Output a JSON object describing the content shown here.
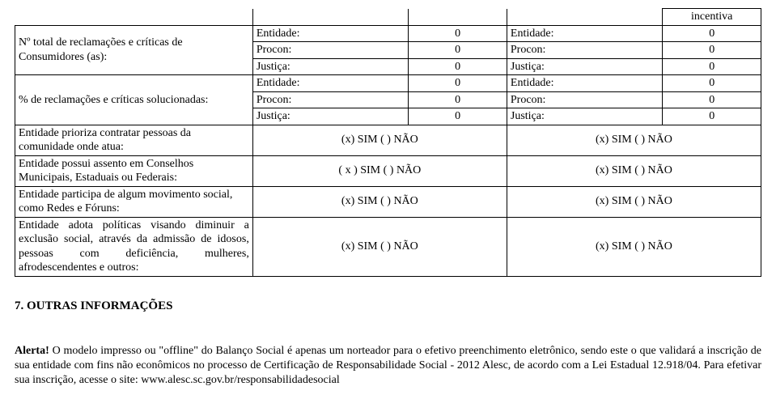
{
  "top_cell": "incentiva",
  "rows_triple": [
    {
      "label": "Nº total de reclamações e críticas de Consumidores (as):",
      "lines": [
        {
          "k": "Entidade:",
          "v1": "0",
          "v2": "0"
        },
        {
          "k": "Procon:",
          "v1": "0",
          "v2": "0"
        },
        {
          "k": "Justiça:",
          "v1": "0",
          "v2": "0"
        }
      ]
    },
    {
      "label": "% de reclamações e críticas solucionadas:",
      "lines": [
        {
          "k": "Entidade:",
          "v1": "0",
          "v2": "0"
        },
        {
          "k": "Procon:",
          "v1": "0",
          "v2": "0"
        },
        {
          "k": "Justiça:",
          "v1": "0",
          "v2": "0"
        }
      ]
    }
  ],
  "rows_simnao": [
    {
      "label": "Entidade prioriza contratar pessoas da comunidade onde atua:",
      "c1": "(x) SIM ( ) NÃO",
      "c2": "(x) SIM ( ) NÃO"
    },
    {
      "label": "Entidade possui assento em Conselhos Municipais, Estaduais ou Federais:",
      "c1": "( x ) SIM ( ) NÃO",
      "c2": "(x) SIM ( ) NÃO"
    },
    {
      "label": "Entidade participa de algum movimento social, como Redes e Fóruns:",
      "c1": "(x) SIM ( ) NÃO",
      "c2": "(x) SIM ( ) NÃO"
    },
    {
      "label": "Entidade adota políticas visando diminuir a exclusão social, através da admissão de idosos, pessoas com deficiência, mulheres, afrodescendentes e outros:",
      "c1": "(x) SIM ( ) NÃO",
      "c2": "(x) SIM ( ) NÃO",
      "justify": true
    }
  ],
  "section_title": "7. OUTRAS INFORMAÇÕES",
  "alert_label": "Alerta!",
  "alert_text": " O modelo impresso ou \"offline\" do Balanço Social é apenas um norteador para o efetivo preenchimento eletrônico, sendo este o que validará a inscrição de sua entidade com fins não econômicos no processo de Certificação de Responsabilidade Social - 2012 Alesc, de acordo com a Lei Estadual 12.918/04. Para efetivar sua inscrição, acesse o site: www.alesc.sc.gov.br/responsabilidadesocial"
}
